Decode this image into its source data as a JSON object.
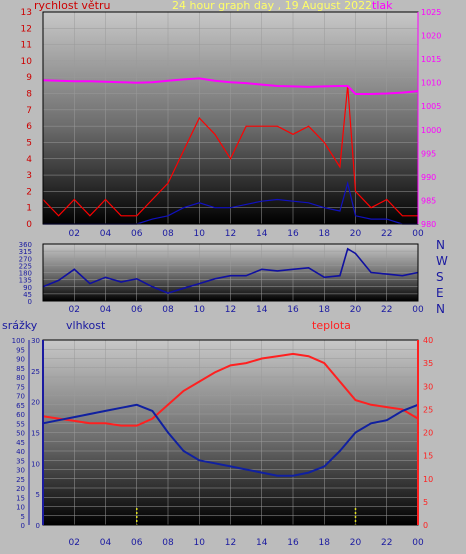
{
  "chart_data": [
    {
      "type": "line",
      "title": "24 hour graph day , 19 August 2022",
      "left_axis_label": "rychlost větru",
      "right_axis_label": "tlak",
      "ylim_left": [
        0,
        13
      ],
      "ylim_right": [
        980,
        1025
      ],
      "left_ticks": [
        "0",
        "1",
        "2",
        "3",
        "4",
        "5",
        "6",
        "7",
        "8",
        "9",
        "10",
        "11",
        "12",
        "13"
      ],
      "right_ticks": [
        "980",
        "985",
        "990",
        "995",
        "1000",
        "1005",
        "1010",
        "1015",
        "1020",
        "1025"
      ],
      "x_ticks": [
        "02",
        "04",
        "06",
        "08",
        "10",
        "12",
        "14",
        "16",
        "18",
        "20",
        "22",
        "00"
      ],
      "series": [
        {
          "name": "tlak",
          "color": "#ff00ff",
          "x": [
            0,
            1,
            2,
            3,
            4,
            5,
            6,
            7,
            8,
            9,
            10,
            11,
            12,
            13,
            14,
            15,
            16,
            17,
            18,
            19,
            19.5,
            20,
            21,
            22,
            23,
            24
          ],
          "values": [
            1010.5,
            1010.4,
            1010.3,
            1010.3,
            1010.2,
            1010.1,
            1010.0,
            1010.1,
            1010.4,
            1010.7,
            1010.9,
            1010.4,
            1010.1,
            1009.9,
            1009.6,
            1009.3,
            1009.2,
            1009.1,
            1009.2,
            1009.3,
            1009.3,
            1007.6,
            1007.6,
            1007.7,
            1007.9,
            1008.2
          ]
        },
        {
          "name": "gust",
          "color": "#ff0000",
          "x": [
            0,
            1,
            2,
            3,
            4,
            5,
            6,
            7,
            8,
            9,
            10,
            11,
            12,
            13,
            14,
            15,
            16,
            17,
            18,
            19,
            19.5,
            20,
            21,
            22,
            23,
            24
          ],
          "values": [
            1.5,
            0.5,
            1.5,
            0.5,
            1.5,
            0.5,
            0.5,
            1.5,
            2.5,
            4.5,
            6.5,
            5.5,
            4.0,
            6.0,
            6.0,
            6.0,
            5.5,
            6.0,
            5.0,
            3.5,
            8.5,
            2.0,
            1.0,
            1.5,
            0.5,
            0.5
          ]
        },
        {
          "name": "wind",
          "color": "#1010c0",
          "x": [
            0,
            1,
            2,
            3,
            4,
            5,
            6,
            7,
            8,
            9,
            10,
            11,
            12,
            13,
            14,
            15,
            16,
            17,
            18,
            19,
            19.5,
            20,
            21,
            22,
            23,
            24
          ],
          "values": [
            0,
            0,
            0,
            0,
            0,
            0,
            0,
            0.3,
            0.5,
            1.0,
            1.3,
            1.0,
            1.0,
            1.2,
            1.4,
            1.5,
            1.4,
            1.3,
            1.0,
            0.8,
            2.5,
            0.5,
            0.3,
            0.3,
            0,
            0
          ]
        }
      ]
    },
    {
      "type": "line",
      "ylim": [
        0,
        360
      ],
      "y_ticks": [
        "0",
        "45",
        "90",
        "135",
        "180",
        "225",
        "270",
        "315",
        "360"
      ],
      "compass_labels": [
        "N",
        "W",
        "S",
        "E",
        "N"
      ],
      "x_ticks": [
        "02",
        "04",
        "06",
        "08",
        "10",
        "12",
        "14",
        "16",
        "18",
        "20",
        "22",
        "00"
      ],
      "series": [
        {
          "name": "směr",
          "color": "#1010a0",
          "x": [
            0,
            1,
            2,
            3,
            4,
            5,
            6,
            7,
            8,
            9,
            10,
            11,
            12,
            13,
            14,
            15,
            16,
            17,
            18,
            19,
            19.5,
            20,
            21,
            22,
            23,
            24
          ],
          "values": [
            90,
            130,
            200,
            110,
            150,
            120,
            140,
            90,
            50,
            80,
            110,
            140,
            160,
            160,
            200,
            190,
            200,
            210,
            150,
            160,
            330,
            300,
            180,
            170,
            160,
            180
          ]
        }
      ]
    },
    {
      "type": "line",
      "left_axis_label": "srážky",
      "humidity_label": "vlhkost",
      "temperature_label": "teplota",
      "ylim_precip": [
        0,
        100
      ],
      "ylim_humidity": [
        0,
        30
      ],
      "ylim_temp": [
        0,
        40
      ],
      "precip_ticks": [
        "0",
        "5",
        "10",
        "15",
        "20",
        "25",
        "30",
        "35",
        "40",
        "45",
        "50",
        "55",
        "60",
        "65",
        "70",
        "75",
        "80",
        "85",
        "90",
        "95",
        "100"
      ],
      "humidity_ticks": [
        "0",
        "5",
        "10",
        "15",
        "20",
        "25",
        "30"
      ],
      "temp_ticks": [
        "0",
        "5",
        "10",
        "15",
        "20",
        "25",
        "30",
        "35",
        "40"
      ],
      "x_ticks": [
        "02",
        "04",
        "06",
        "08",
        "10",
        "12",
        "14",
        "16",
        "18",
        "20",
        "22",
        "00"
      ],
      "series": [
        {
          "name": "teplota",
          "color": "#ff2020",
          "x": [
            0,
            1,
            2,
            3,
            4,
            5,
            6,
            7,
            8,
            9,
            10,
            11,
            12,
            13,
            14,
            15,
            16,
            17,
            18,
            19,
            20,
            21,
            22,
            23,
            24
          ],
          "values": [
            23.5,
            23,
            22.5,
            22,
            22,
            21.5,
            21.5,
            23,
            26,
            29,
            31,
            33,
            34.5,
            35,
            36,
            36.5,
            37,
            36.5,
            35,
            31,
            27,
            26,
            25.5,
            25,
            23
          ]
        },
        {
          "name": "vlhkost",
          "color": "#1020a0",
          "x": [
            0,
            1,
            2,
            3,
            4,
            5,
            6,
            7,
            8,
            9,
            10,
            11,
            12,
            13,
            14,
            15,
            16,
            17,
            18,
            19,
            20,
            21,
            22,
            23,
            24
          ],
          "values": [
            16.5,
            17,
            17.5,
            18,
            18.5,
            19,
            19.5,
            18.5,
            15,
            12,
            10.5,
            10,
            9.5,
            9,
            8.5,
            8,
            8,
            8.5,
            9.5,
            12,
            15,
            16.5,
            17,
            18.5,
            19.5
          ]
        },
        {
          "name": "srážky",
          "color": "#e0e020",
          "x": [
            6,
            20
          ],
          "values": [
            0.5,
            0.5
          ]
        }
      ]
    }
  ]
}
